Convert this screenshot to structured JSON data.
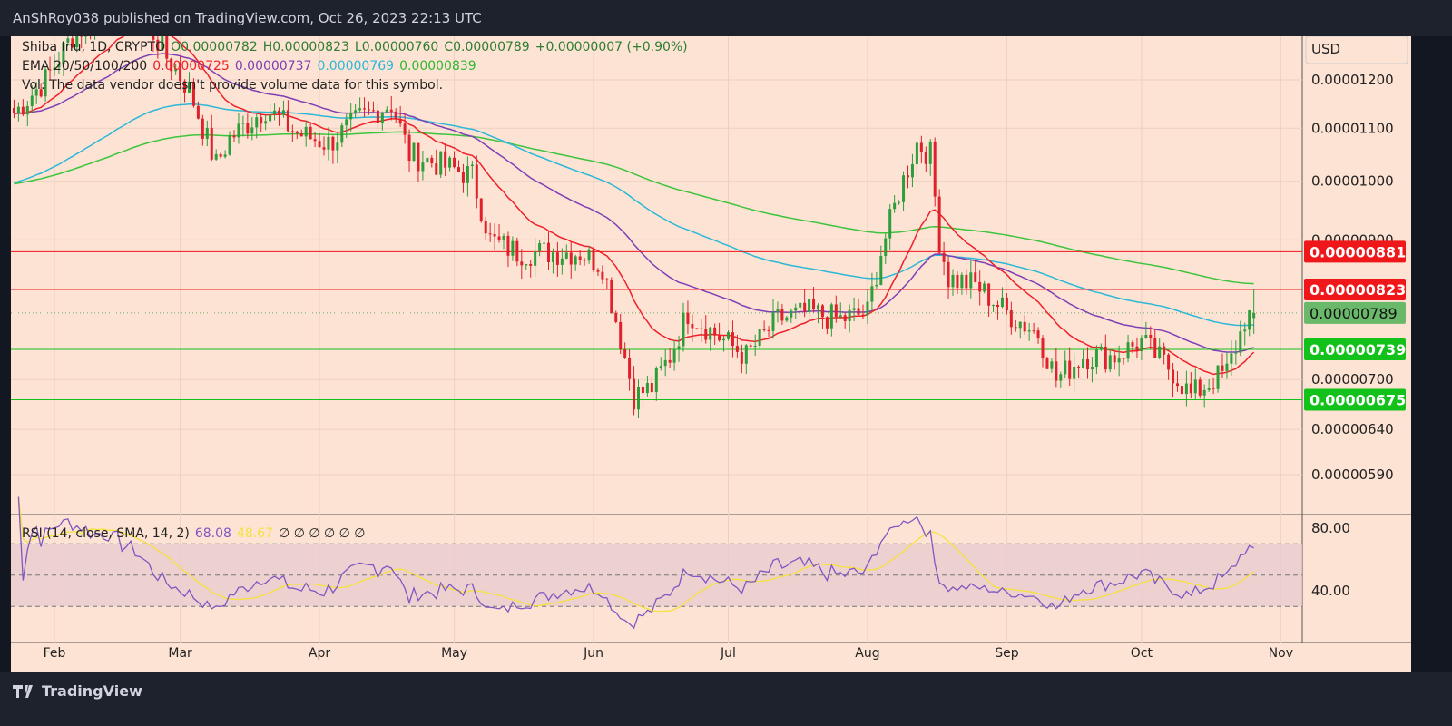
{
  "header": {
    "published": "AnShRoy038 published on TradingView.com, Oct 26, 2023 22:13 UTC"
  },
  "footer": {
    "logo_text": "TradingView"
  },
  "legend": {
    "symbol": "Shiba Inu, 1D, CRYPTO",
    "open": "O0.00000782",
    "high": "H0.00000823",
    "low": "L0.00000760",
    "close": "C0.00000789",
    "change": "+0.00000007 (+0.90%)",
    "ema_label": "EMA 20/50/100/200",
    "ema20": "0.00000725",
    "ema50": "0.00000737",
    "ema100": "0.00000769",
    "ema200": "0.00000839",
    "vol": "Vol: The data vendor doesn't provide volume data for this symbol.",
    "rsi_label": "RSI (14, close, SMA, 14, 2)",
    "rsi_value": "68.08",
    "rsi_sma": "48.67",
    "rsi_extra": "∅ ∅ ∅ ∅ ∅ ∅"
  },
  "colors": {
    "up": "#26a69a",
    "up_candle": "#2e9d3a",
    "down": "#e0202a",
    "ema20": "#f0202a",
    "ema50": "#7e3fb5",
    "ema100": "#2bb8d8",
    "ema200": "#3cc43c",
    "rsi": "#7e57c2",
    "rsi_sma": "#f5e23a",
    "background": "#fde3d3"
  },
  "chart_data": {
    "type": "candlestick",
    "currency": "USD",
    "scale": "log",
    "price_ticks": [
      "0.00001200",
      "0.00001100",
      "0.00001000",
      "0.00000900",
      "0.00000700",
      "0.00000640",
      "0.00000590"
    ],
    "x_ticks": [
      "Feb",
      "Mar",
      "Apr",
      "May",
      "Jun",
      "Jul",
      "Aug",
      "Sep",
      "Oct",
      "Nov"
    ],
    "year": 2023,
    "last_candle": {
      "date": "2023-10-26",
      "open": 7.82e-06,
      "high": 8.23e-06,
      "low": 7.6e-06,
      "close": 7.89e-06
    },
    "approx_closes": [
      [
        "2023-01-23",
        1.13e-05
      ],
      [
        "2023-01-30",
        1.2e-05
      ],
      [
        "2023-02-05",
        1.3e-05
      ],
      [
        "2023-02-12",
        1.35e-05
      ],
      [
        "2023-02-19",
        1.38e-05
      ],
      [
        "2023-02-26",
        1.25e-05
      ],
      [
        "2023-03-03",
        1.18e-05
      ],
      [
        "2023-03-09",
        1.03e-05
      ],
      [
        "2023-03-12",
        1.08e-05
      ],
      [
        "2023-03-20",
        1.14e-05
      ],
      [
        "2023-03-27",
        1.09e-05
      ],
      [
        "2023-04-03",
        1.07e-05
      ],
      [
        "2023-04-10",
        1.12e-05
      ],
      [
        "2023-04-17",
        1.15e-05
      ],
      [
        "2023-04-21",
        1.05e-05
      ],
      [
        "2023-04-28",
        1.03e-05
      ],
      [
        "2023-05-05",
        1.01e-05
      ],
      [
        "2023-05-09",
        9e-06
      ],
      [
        "2023-05-15",
        8.8e-06
      ],
      [
        "2023-05-22",
        8.8e-06
      ],
      [
        "2023-05-29",
        8.8e-06
      ],
      [
        "2023-06-03",
        8.6e-06
      ],
      [
        "2023-06-06",
        7.8e-06
      ],
      [
        "2023-06-10",
        6.8e-06
      ],
      [
        "2023-06-14",
        6.9e-06
      ],
      [
        "2023-06-18",
        7.3e-06
      ],
      [
        "2023-06-22",
        7.9e-06
      ],
      [
        "2023-06-28",
        7.6e-06
      ],
      [
        "2023-07-05",
        7.3e-06
      ],
      [
        "2023-07-12",
        7.8e-06
      ],
      [
        "2023-07-19",
        7.9e-06
      ],
      [
        "2023-07-26",
        7.8e-06
      ],
      [
        "2023-08-01",
        7.9e-06
      ],
      [
        "2023-08-04",
        8.8e-06
      ],
      [
        "2023-08-08",
        9.8e-06
      ],
      [
        "2023-08-12",
        1.07e-05
      ],
      [
        "2023-08-15",
        1.05e-05
      ],
      [
        "2023-08-17",
        9e-06
      ],
      [
        "2023-08-19",
        8.4e-06
      ],
      [
        "2023-08-25",
        8.3e-06
      ],
      [
        "2023-09-01",
        7.9e-06
      ],
      [
        "2023-09-08",
        7.6e-06
      ],
      [
        "2023-09-12",
        7e-06
      ],
      [
        "2023-09-18",
        7.3e-06
      ],
      [
        "2023-09-25",
        7.3e-06
      ],
      [
        "2023-10-01",
        7.5e-06
      ],
      [
        "2023-10-08",
        7.1e-06
      ],
      [
        "2023-10-12",
        6.8e-06
      ],
      [
        "2023-10-17",
        7e-06
      ],
      [
        "2023-10-20",
        7.1e-06
      ],
      [
        "2023-10-23",
        7.6e-06
      ],
      [
        "2023-10-24",
        7.8e-06
      ],
      [
        "2023-10-26",
        7.89e-06
      ]
    ],
    "horizontal_levels": [
      {
        "label": "0.00000881",
        "value": 8.81e-06,
        "color": "#f0171a"
      },
      {
        "label": "0.00000823",
        "value": 8.23e-06,
        "color": "#f0171a"
      },
      {
        "label": "0.00000739",
        "value": 7.39e-06,
        "color": "#12c21b"
      },
      {
        "label": "0.00000675",
        "value": 6.75e-06,
        "color": "#12c21b"
      }
    ],
    "current_price": {
      "label": "0.00000789",
      "value": 7.89e-06,
      "color": "#6ab86a"
    },
    "rsi": {
      "ticks": [
        "80.00",
        "40.00"
      ],
      "bands": [
        70,
        50,
        30
      ]
    }
  }
}
